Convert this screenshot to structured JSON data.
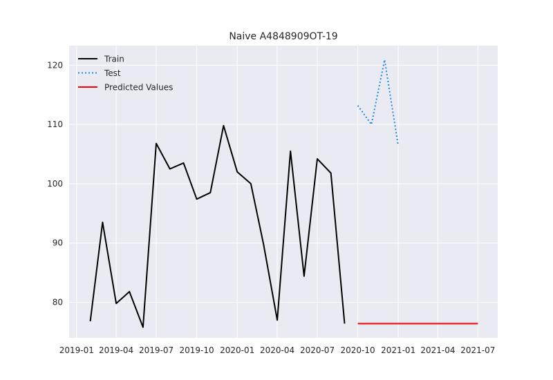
{
  "chart_data": {
    "type": "line",
    "title": "Naive A4848909OT-19",
    "xlabel": "",
    "ylabel": "",
    "x_type": "date",
    "xlim": [
      "2018-12-15",
      "2021-08-15"
    ],
    "ylim": [
      74,
      123.3
    ],
    "grid": true,
    "legend_position": "top-left",
    "x_ticks": [
      {
        "date": "2019-01-01",
        "label": "2019-01"
      },
      {
        "date": "2019-04-01",
        "label": "2019-04"
      },
      {
        "date": "2019-07-01",
        "label": "2019-07"
      },
      {
        "date": "2019-10-01",
        "label": "2019-10"
      },
      {
        "date": "2020-01-01",
        "label": "2020-01"
      },
      {
        "date": "2020-04-01",
        "label": "2020-04"
      },
      {
        "date": "2020-07-01",
        "label": "2020-07"
      },
      {
        "date": "2020-10-01",
        "label": "2020-10"
      },
      {
        "date": "2021-01-01",
        "label": "2021-01"
      },
      {
        "date": "2021-04-01",
        "label": "2021-04"
      },
      {
        "date": "2021-07-01",
        "label": "2021-07"
      }
    ],
    "y_ticks": [
      80,
      90,
      100,
      110,
      120
    ],
    "series": [
      {
        "name": "Train",
        "color": "#000000",
        "style": "solid",
        "points": [
          {
            "x": "2019-02-01",
            "y": 76.8
          },
          {
            "x": "2019-03-01",
            "y": 93.5
          },
          {
            "x": "2019-04-01",
            "y": 79.8
          },
          {
            "x": "2019-05-01",
            "y": 81.8
          },
          {
            "x": "2019-06-01",
            "y": 75.8
          },
          {
            "x": "2019-07-01",
            "y": 106.8
          },
          {
            "x": "2019-08-01",
            "y": 102.5
          },
          {
            "x": "2019-09-01",
            "y": 103.5
          },
          {
            "x": "2019-10-01",
            "y": 97.4
          },
          {
            "x": "2019-11-01",
            "y": 98.5
          },
          {
            "x": "2019-12-01",
            "y": 109.8
          },
          {
            "x": "2020-01-01",
            "y": 102.0
          },
          {
            "x": "2020-02-01",
            "y": 100.0
          },
          {
            "x": "2020-03-01",
            "y": 89.7
          },
          {
            "x": "2020-04-01",
            "y": 77.0
          },
          {
            "x": "2020-05-01",
            "y": 105.5
          },
          {
            "x": "2020-06-01",
            "y": 84.4
          },
          {
            "x": "2020-07-01",
            "y": 104.2
          },
          {
            "x": "2020-08-01",
            "y": 101.8
          },
          {
            "x": "2020-09-01",
            "y": 76.4
          }
        ]
      },
      {
        "name": "Test",
        "color": "#1e88e5",
        "style": "dotted",
        "points": [
          {
            "x": "2020-10-01",
            "y": 113.2
          },
          {
            "x": "2020-11-01",
            "y": 110.0
          },
          {
            "x": "2020-12-01",
            "y": 120.9
          },
          {
            "x": "2021-01-01",
            "y": 106.4
          }
        ]
      },
      {
        "name": "Predicted Values",
        "color": "#ff0000",
        "style": "solid",
        "points": [
          {
            "x": "2020-10-01",
            "y": 76.4
          },
          {
            "x": "2021-07-01",
            "y": 76.4
          }
        ]
      }
    ]
  },
  "style": {
    "plot_background": "#eaeaf2",
    "grid_color": "#ffffff",
    "text_color": "#262626"
  }
}
